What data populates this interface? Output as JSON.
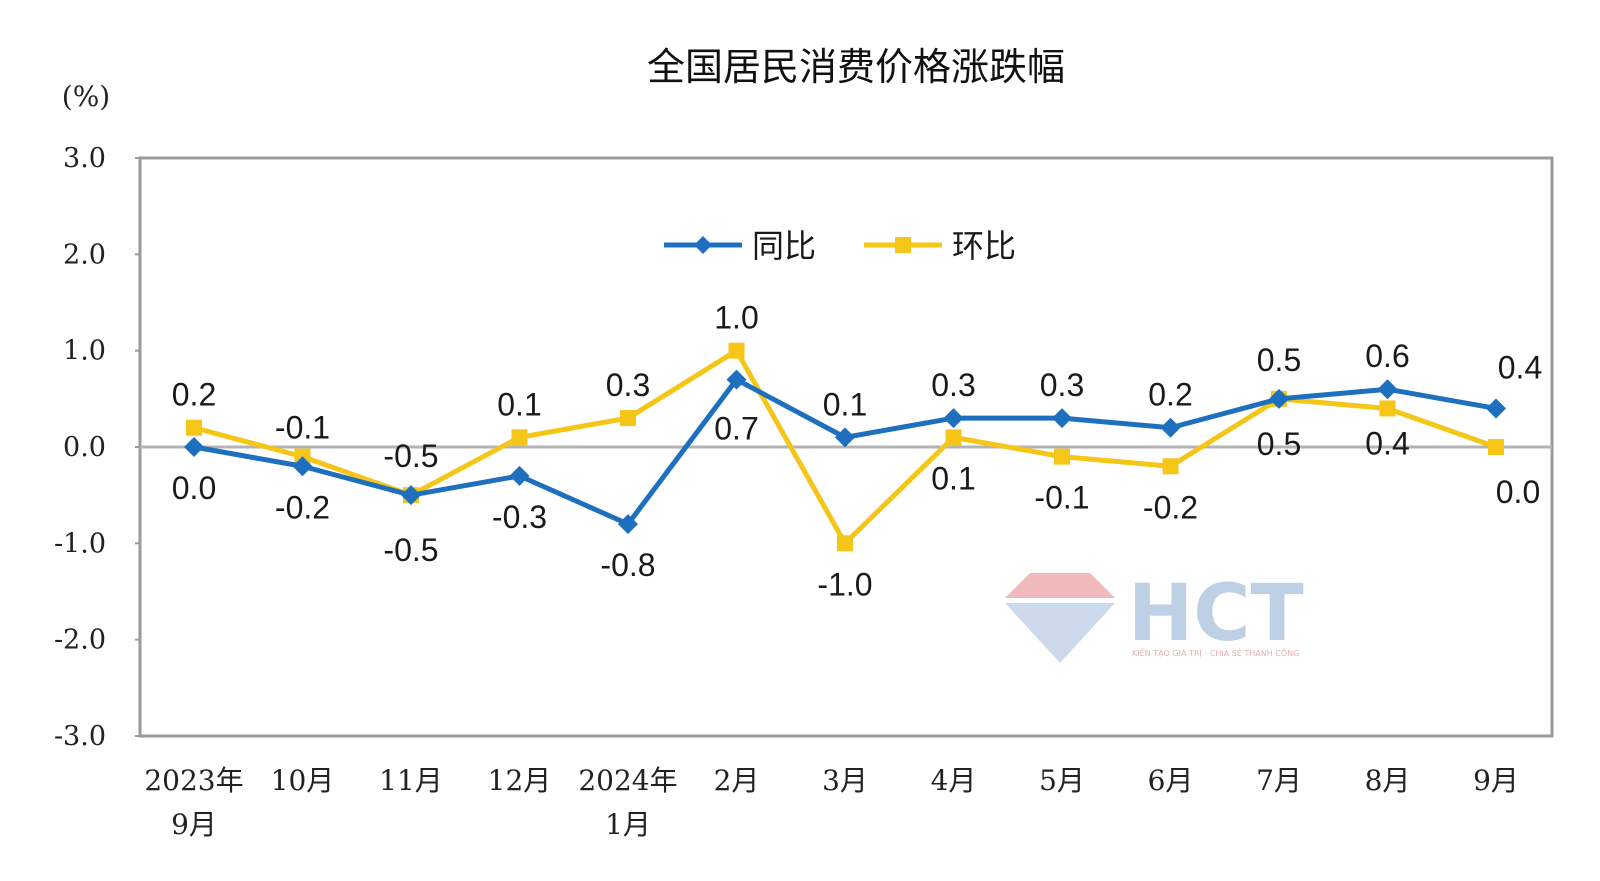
{
  "chart_data": {
    "type": "line",
    "title": "全国居民消费价格涨跌幅",
    "unit": "(%)",
    "ylim": [
      -3.0,
      3.0
    ],
    "yticks": [
      "3.0",
      "2.0",
      "1.0",
      "0.0",
      "-1.0",
      "-2.0",
      "-3.0"
    ],
    "categories": [
      [
        "2023年",
        "9月"
      ],
      [
        "10月"
      ],
      [
        "11月"
      ],
      [
        "12月"
      ],
      [
        "2024年",
        "1月"
      ],
      [
        "2月"
      ],
      [
        "3月"
      ],
      [
        "4月"
      ],
      [
        "5月"
      ],
      [
        "6月"
      ],
      [
        "7月"
      ],
      [
        "8月"
      ],
      [
        "9月"
      ]
    ],
    "legend_position": "top-center",
    "grid": false,
    "series": [
      {
        "name": "同比",
        "color": "#1f6fbf",
        "marker": "diamond",
        "values": [
          0.0,
          -0.2,
          -0.5,
          -0.3,
          -0.8,
          0.7,
          0.1,
          0.3,
          0.3,
          0.2,
          0.5,
          0.6,
          0.4
        ],
        "labels": [
          "0.0",
          "-0.2",
          "-0.5",
          "-0.3",
          "-0.8",
          "0.7",
          "0.1",
          "0.3",
          "0.3",
          "0.2",
          "0.5",
          "0.6",
          "0.4"
        ]
      },
      {
        "name": "环比",
        "color": "#f5c518",
        "marker": "square",
        "values": [
          0.2,
          -0.1,
          -0.5,
          0.1,
          0.3,
          1.0,
          -1.0,
          0.1,
          -0.1,
          -0.2,
          0.5,
          0.4,
          0.0
        ],
        "labels": [
          "0.2",
          "-0.1",
          "-0.5",
          "0.1",
          "0.3",
          "1.0",
          "-1.0",
          "0.1",
          "-0.1",
          "-0.2",
          "0.5",
          "0.4",
          "0.0"
        ]
      }
    ]
  },
  "watermark": {
    "text": "HCT",
    "tagline": "KIẾN TẠO GIÁ TRỊ - CHIA SẺ THÀNH CÔNG",
    "colors": {
      "text": "#b7cbe3",
      "diamond_top": "#f0b3b3",
      "diamond_bottom": "#c7d7ea"
    }
  }
}
